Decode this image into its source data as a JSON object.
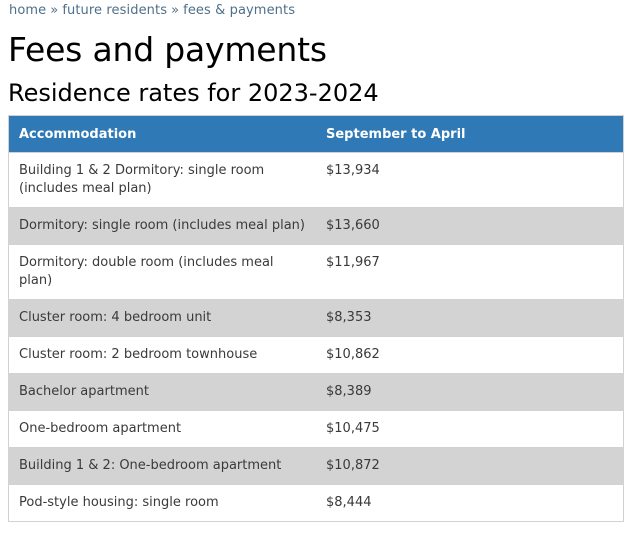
{
  "breadcrumb": [
    {
      "label": "home"
    },
    {
      "label": "future residents"
    },
    {
      "label": "fees & payments"
    }
  ],
  "breadcrumb_separator": "»",
  "page_title": "Fees and payments",
  "section_title": "Residence rates for 2023-2024",
  "table": {
    "headers": [
      "Accommodation",
      "September to April"
    ],
    "rows": [
      [
        "Building 1 & 2 Dormitory: single room (includes meal plan)",
        "$13,934"
      ],
      [
        "Dormitory: single room (includes meal plan)",
        "$13,660"
      ],
      [
        "Dormitory: double room (includes meal plan)",
        "$11,967"
      ],
      [
        "Cluster room: 4 bedroom unit",
        "$8,353"
      ],
      [
        "Cluster room: 2 bedroom townhouse",
        "$10,862"
      ],
      [
        "Bachelor apartment",
        "$8,389"
      ],
      [
        "One-bedroom apartment",
        "$10,475"
      ],
      [
        "Building 1 & 2: One-bedroom apartment",
        "$10,872"
      ],
      [
        "Pod-style housing: single room",
        "$8,444"
      ]
    ]
  },
  "colors": {
    "header_bg": "#2f79b6",
    "alt_row_bg": "#d3d3d3",
    "breadcrumb": "#4f6f8a"
  }
}
